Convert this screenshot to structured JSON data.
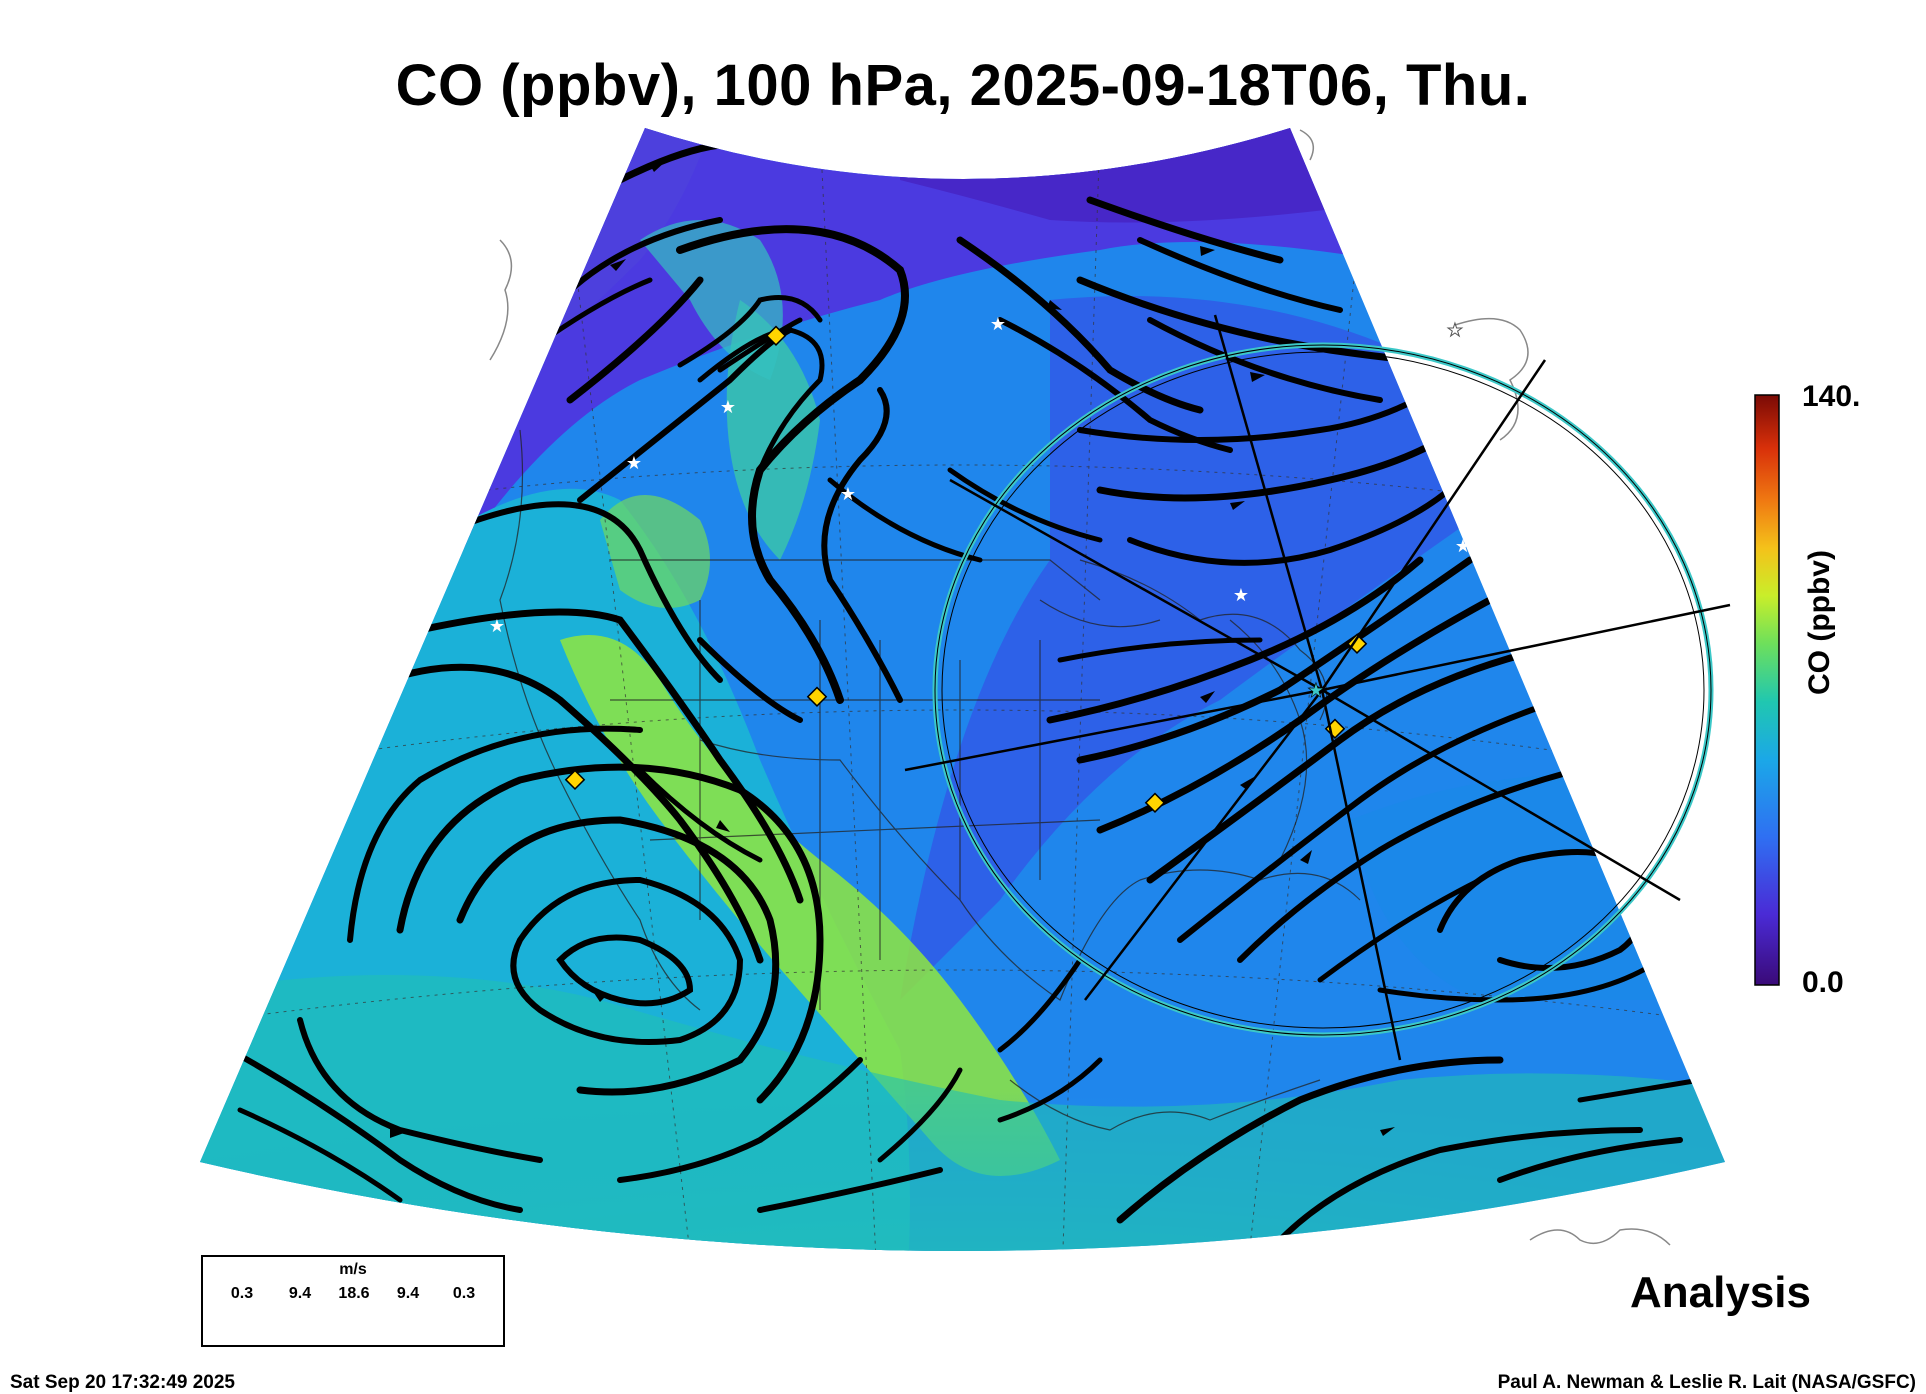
{
  "title": "CO (ppbv), 100 hPa, 2025-09-18T06, Thu.",
  "colorbar": {
    "max_label": "140.",
    "min_label": "0.0",
    "label": "CO (ppbv)",
    "range": [
      0,
      140
    ],
    "colors": [
      "#3a0a78",
      "#4a2bd6",
      "#2f6ff2",
      "#1ba7e8",
      "#20c7b0",
      "#6fe05a",
      "#c9ee2a",
      "#f4c21a",
      "#f07a12",
      "#d8300a",
      "#7a0a05"
    ]
  },
  "wind_legend": {
    "unit": "m/s",
    "ticks": [
      "0.3",
      "9.4",
      "18.6",
      "9.4",
      "0.3"
    ]
  },
  "analysis_label": "Analysis",
  "footer": {
    "timestamp": "Sat Sep 20 17:32:49 2025",
    "credit": "Paul A. Newman & Leslie R. Lait (NASA/GSFC)"
  },
  "colors": {
    "streamline": "#000000",
    "marker_diamond": "#ffd500",
    "marker_star": "#ffffff",
    "circle": "#3cc8c8"
  }
}
